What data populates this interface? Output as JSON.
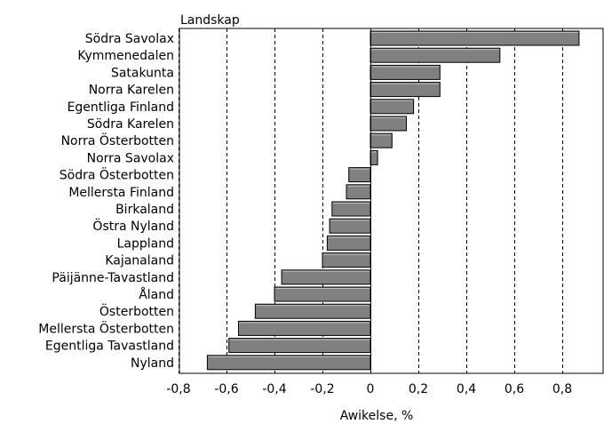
{
  "chart_data": {
    "type": "bar",
    "orientation": "horizontal",
    "title": "",
    "category_axis_label": "Landskap",
    "xlabel": "Awikelse, %",
    "xlim": [
      -0.8,
      1.0
    ],
    "x_ticks": [
      -0.8,
      -0.6,
      -0.4,
      -0.2,
      0,
      0.2,
      0.4,
      0.6,
      0.8
    ],
    "x_tick_labels": [
      "-0,8",
      "-0,6",
      "-0,4",
      "-0,2",
      "0",
      "0,2",
      "0,4",
      "0,6",
      "0,8"
    ],
    "grid": "vertical dashed",
    "legend": "none",
    "bar_color": "#808080",
    "categories": [
      "Södra Savolax",
      "Kymmenedalen",
      "Satakunta",
      "Norra Karelen",
      "Egentliga Finland",
      "Södra Karelen",
      "Norra Österbotten",
      "Norra Savolax",
      "Södra Österbotten",
      "Mellersta Finland",
      "Birkaland",
      "Östra Nyland",
      "Lappland",
      "Kajanaland",
      "Päijänne-Tavastland",
      "Åland",
      "Österbotten",
      "Mellersta Österbotten",
      "Egentliga Tavastland",
      "Nyland"
    ],
    "values": [
      0.87,
      0.54,
      0.29,
      0.29,
      0.18,
      0.15,
      0.09,
      0.03,
      -0.09,
      -0.1,
      -0.16,
      -0.17,
      -0.18,
      -0.2,
      -0.37,
      -0.4,
      -0.48,
      -0.55,
      -0.59,
      -0.68
    ]
  }
}
